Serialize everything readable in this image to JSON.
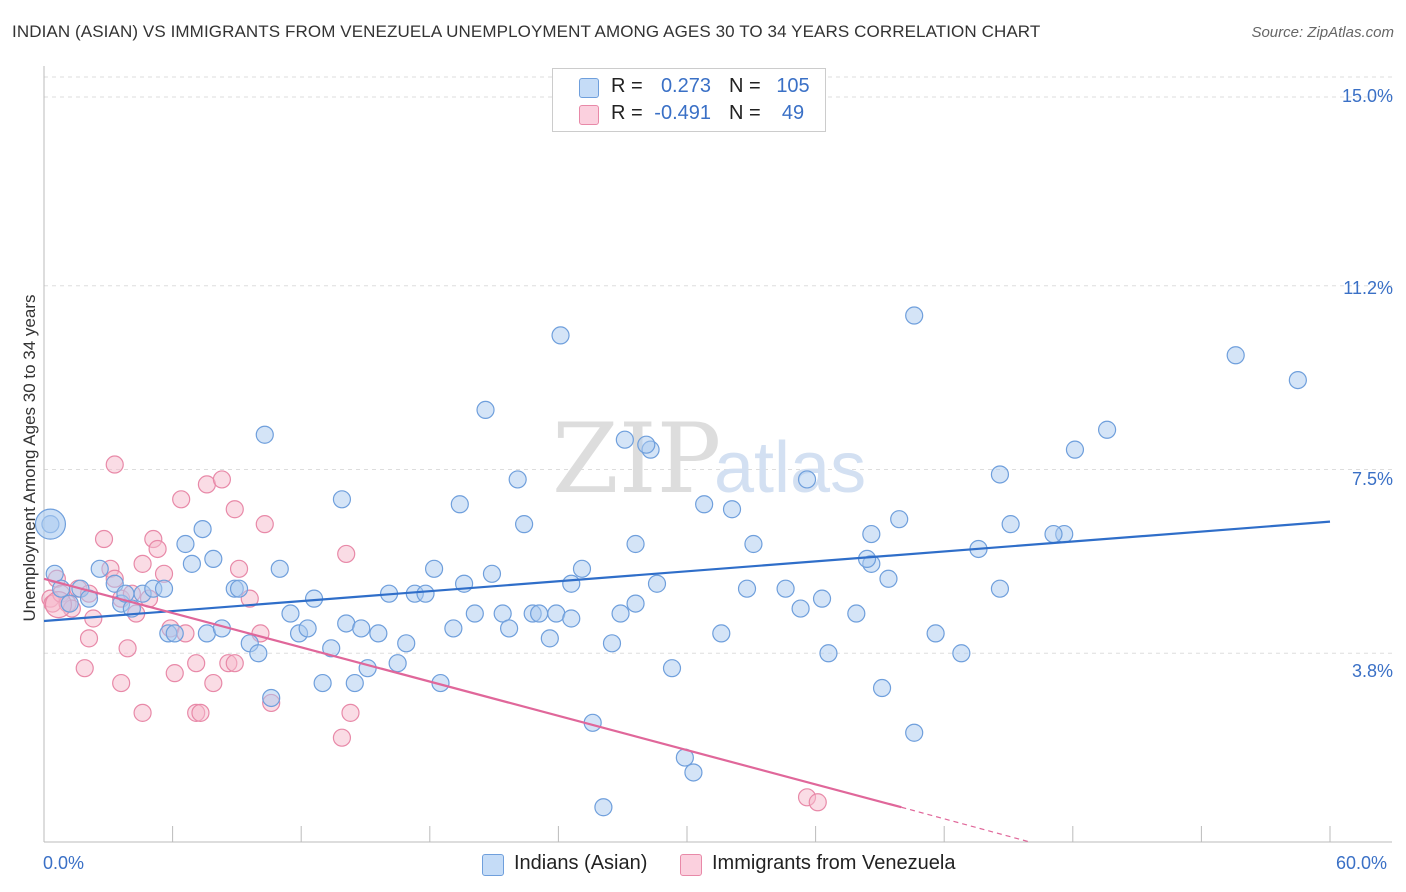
{
  "header": {
    "title": "INDIAN (ASIAN) VS IMMIGRANTS FROM VENEZUELA UNEMPLOYMENT AMONG AGES 30 TO 34 YEARS CORRELATION CHART",
    "source": "Source: ZipAtlas.com"
  },
  "watermark": {
    "zip": "ZIP",
    "atlas": "atlas"
  },
  "colors": {
    "blue_fill": "#a9c9f0",
    "blue_stroke": "#6f9fdc",
    "blue_line": "#2f6ec9",
    "pink_fill": "#f6b9cc",
    "pink_stroke": "#e889a8",
    "pink_line": "#e0679a",
    "axis_label": "#3a70c6",
    "grid": "#dddddd"
  },
  "legend": {
    "rows": [
      {
        "r_label": "R =",
        "r_value": "0.273",
        "n_label": "N =",
        "n_value": "105"
      },
      {
        "r_label": "R =",
        "r_value": "-0.491",
        "n_label": "N =",
        "n_value": "49"
      }
    ]
  },
  "bottom_legend": {
    "series1": "Indians (Asian)",
    "series2": "Immigrants from Venezuela"
  },
  "axes": {
    "y_title": "Unemployment Among Ages 30 to 34 years",
    "y_ticks": [
      "15.0%",
      "11.2%",
      "7.5%",
      "3.8%"
    ],
    "x_min_label": "0.0%",
    "x_max_label": "60.0%"
  },
  "chart_data": {
    "type": "scatter",
    "title": "INDIAN (ASIAN) VS IMMIGRANTS FROM VENEZUELA UNEMPLOYMENT AMONG AGES 30 TO 34 YEARS CORRELATION CHART",
    "xlabel": "",
    "ylabel": "Unemployment Among Ages 30 to 34 years",
    "xlim": [
      0,
      60
    ],
    "ylim": [
      0,
      15.5
    ],
    "y_gridlines": [
      3.8,
      7.5,
      11.2,
      15.0
    ],
    "series": [
      {
        "name": "Indians (Asian)",
        "r": 0.273,
        "n": 105,
        "trend": {
          "x": [
            0,
            60
          ],
          "y": [
            4.45,
            6.45
          ]
        },
        "points": [
          [
            0.3,
            6.4
          ],
          [
            0.5,
            5.4
          ],
          [
            0.8,
            5.1
          ],
          [
            1.2,
            4.8
          ],
          [
            1.7,
            5.1
          ],
          [
            2.1,
            4.9
          ],
          [
            2.6,
            5.5
          ],
          [
            3.3,
            5.2
          ],
          [
            3.6,
            4.8
          ],
          [
            3.8,
            5.0
          ],
          [
            4.1,
            4.7
          ],
          [
            4.6,
            5.0
          ],
          [
            5.1,
            5.1
          ],
          [
            5.6,
            5.1
          ],
          [
            5.8,
            4.2
          ],
          [
            6.1,
            4.2
          ],
          [
            6.6,
            6.0
          ],
          [
            6.9,
            5.6
          ],
          [
            7.4,
            6.3
          ],
          [
            7.6,
            4.2
          ],
          [
            7.9,
            5.7
          ],
          [
            8.3,
            4.3
          ],
          [
            8.9,
            5.1
          ],
          [
            9.1,
            5.1
          ],
          [
            9.6,
            4.0
          ],
          [
            10.0,
            3.8
          ],
          [
            10.3,
            8.2
          ],
          [
            10.6,
            2.9
          ],
          [
            11.0,
            5.5
          ],
          [
            11.5,
            4.6
          ],
          [
            11.9,
            4.2
          ],
          [
            12.3,
            4.3
          ],
          [
            12.6,
            4.9
          ],
          [
            13.0,
            3.2
          ],
          [
            13.4,
            3.9
          ],
          [
            13.9,
            6.9
          ],
          [
            14.1,
            4.4
          ],
          [
            14.5,
            3.2
          ],
          [
            14.8,
            4.3
          ],
          [
            15.1,
            3.5
          ],
          [
            15.6,
            4.2
          ],
          [
            16.1,
            5.0
          ],
          [
            16.5,
            3.6
          ],
          [
            16.9,
            4.0
          ],
          [
            17.3,
            5.0
          ],
          [
            17.8,
            5.0
          ],
          [
            18.2,
            5.5
          ],
          [
            18.5,
            3.2
          ],
          [
            19.1,
            4.3
          ],
          [
            19.4,
            6.8
          ],
          [
            19.6,
            5.2
          ],
          [
            20.1,
            4.6
          ],
          [
            20.6,
            8.7
          ],
          [
            20.9,
            5.4
          ],
          [
            21.4,
            4.6
          ],
          [
            21.7,
            4.3
          ],
          [
            22.1,
            7.3
          ],
          [
            22.4,
            6.4
          ],
          [
            22.8,
            4.6
          ],
          [
            23.1,
            4.6
          ],
          [
            23.6,
            4.1
          ],
          [
            23.9,
            4.6
          ],
          [
            24.1,
            10.2
          ],
          [
            24.6,
            4.5
          ],
          [
            25.1,
            5.5
          ],
          [
            25.6,
            2.4
          ],
          [
            26.1,
            0.7
          ],
          [
            26.5,
            4.0
          ],
          [
            26.9,
            4.6
          ],
          [
            27.1,
            8.1
          ],
          [
            27.6,
            4.8
          ],
          [
            27.6,
            6.0
          ],
          [
            28.3,
            7.9
          ],
          [
            28.6,
            5.2
          ],
          [
            29.3,
            3.5
          ],
          [
            29.9,
            1.7
          ],
          [
            30.3,
            1.4
          ],
          [
            30.8,
            6.8
          ],
          [
            31.6,
            4.2
          ],
          [
            32.1,
            6.7
          ],
          [
            32.8,
            5.1
          ],
          [
            33.1,
            6.0
          ],
          [
            34.6,
            5.1
          ],
          [
            35.3,
            4.7
          ],
          [
            35.6,
            7.3
          ],
          [
            36.3,
            4.9
          ],
          [
            36.6,
            3.8
          ],
          [
            37.9,
            4.6
          ],
          [
            38.6,
            6.2
          ],
          [
            39.1,
            3.1
          ],
          [
            38.6,
            5.6
          ],
          [
            39.4,
            5.3
          ],
          [
            39.9,
            6.5
          ],
          [
            40.6,
            2.2
          ],
          [
            40.6,
            10.6
          ],
          [
            41.6,
            4.2
          ],
          [
            42.8,
            3.8
          ],
          [
            43.6,
            5.9
          ],
          [
            44.6,
            7.4
          ],
          [
            44.6,
            5.1
          ],
          [
            45.1,
            6.4
          ],
          [
            47.6,
            6.2
          ],
          [
            48.1,
            7.9
          ],
          [
            49.6,
            8.3
          ],
          [
            58.5,
            9.3
          ],
          [
            55.6,
            9.8
          ],
          [
            47.1,
            6.2
          ],
          [
            38.4,
            5.7
          ],
          [
            24.6,
            5.2
          ],
          [
            28.1,
            8.0
          ]
        ]
      },
      {
        "name": "Immigrants from Venezuela",
        "r": -0.491,
        "n": 49,
        "trend": {
          "x": [
            0,
            40
          ],
          "y": [
            5.3,
            0.7
          ]
        },
        "trend_dashed": {
          "x": [
            40,
            46
          ],
          "y": [
            0.7,
            0.0
          ]
        },
        "points": [
          [
            0.3,
            4.9
          ],
          [
            0.4,
            4.8
          ],
          [
            0.6,
            5.3
          ],
          [
            0.8,
            5.0
          ],
          [
            1.1,
            4.8
          ],
          [
            1.3,
            4.7
          ],
          [
            1.6,
            5.1
          ],
          [
            1.9,
            3.5
          ],
          [
            2.1,
            4.1
          ],
          [
            2.3,
            4.5
          ],
          [
            2.1,
            5.0
          ],
          [
            2.8,
            6.1
          ],
          [
            3.1,
            5.5
          ],
          [
            3.3,
            5.3
          ],
          [
            3.6,
            4.9
          ],
          [
            3.3,
            7.6
          ],
          [
            3.6,
            3.2
          ],
          [
            3.9,
            3.9
          ],
          [
            4.1,
            5.0
          ],
          [
            4.3,
            4.6
          ],
          [
            4.6,
            5.6
          ],
          [
            4.9,
            4.9
          ],
          [
            5.1,
            6.1
          ],
          [
            4.6,
            2.6
          ],
          [
            5.3,
            5.9
          ],
          [
            5.6,
            5.4
          ],
          [
            5.9,
            4.3
          ],
          [
            6.1,
            3.4
          ],
          [
            6.4,
            6.9
          ],
          [
            6.6,
            4.2
          ],
          [
            7.1,
            2.6
          ],
          [
            7.3,
            2.6
          ],
          [
            7.6,
            7.2
          ],
          [
            7.9,
            3.2
          ],
          [
            7.1,
            3.6
          ],
          [
            8.3,
            7.3
          ],
          [
            8.6,
            3.6
          ],
          [
            8.9,
            3.6
          ],
          [
            9.1,
            5.5
          ],
          [
            8.9,
            6.7
          ],
          [
            9.6,
            4.9
          ],
          [
            10.1,
            4.2
          ],
          [
            10.3,
            6.4
          ],
          [
            10.6,
            2.8
          ],
          [
            13.9,
            2.1
          ],
          [
            14.3,
            2.6
          ],
          [
            14.1,
            5.8
          ],
          [
            35.6,
            0.9
          ],
          [
            36.1,
            0.8
          ]
        ]
      }
    ]
  }
}
